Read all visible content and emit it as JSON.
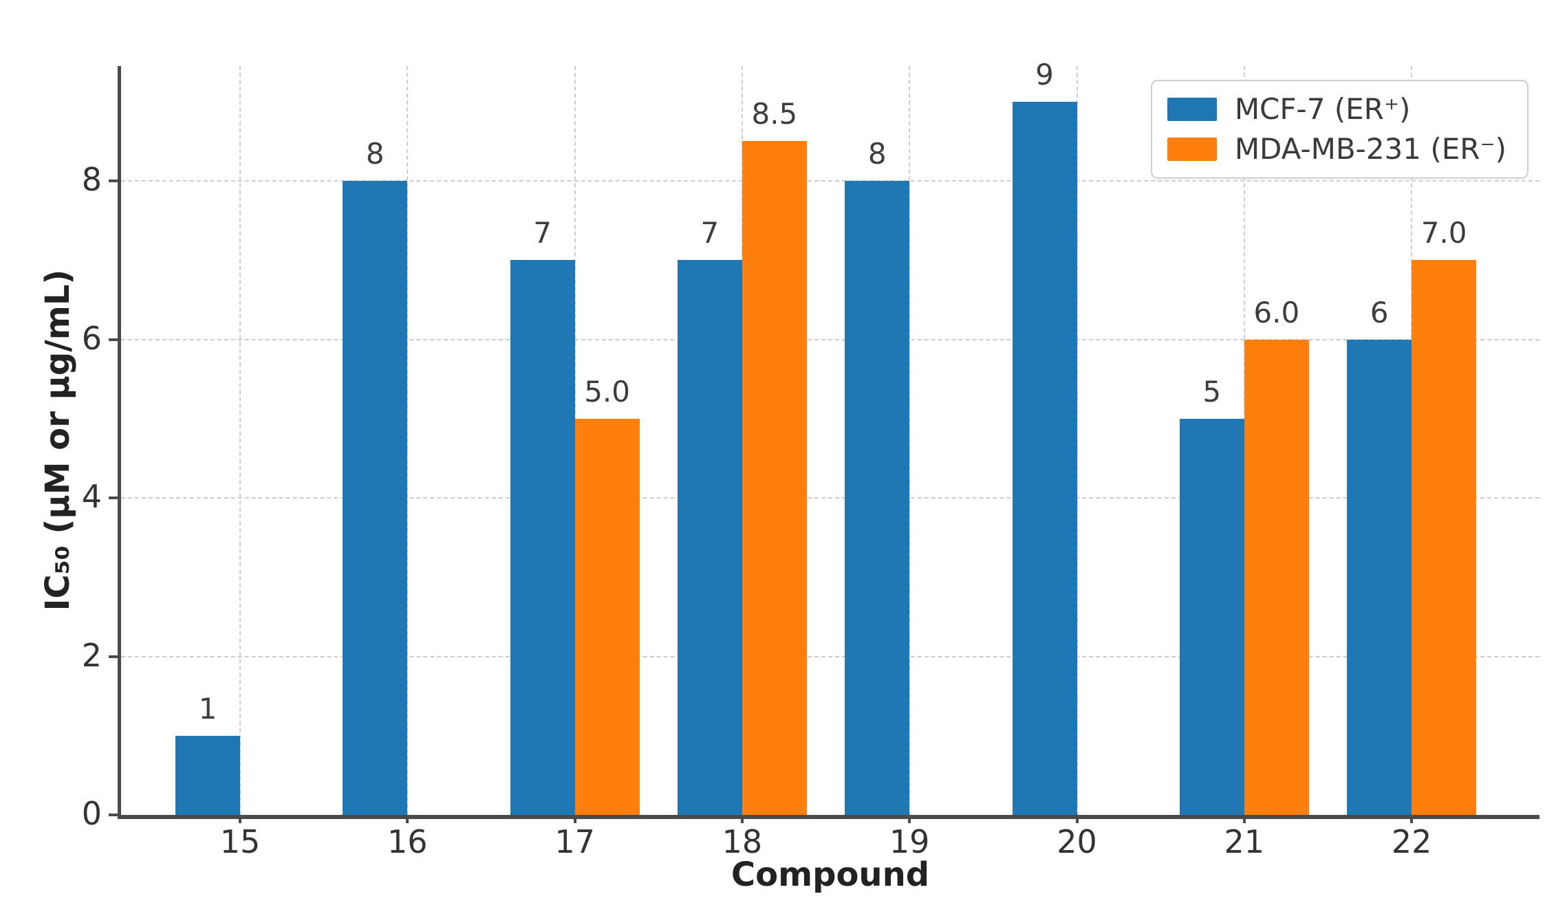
{
  "chart_data": {
    "type": "bar",
    "title": "",
    "xlabel": "Compound",
    "ylabel": "IC₅₀ (μM or μg/mL)",
    "categories": [
      "15",
      "16",
      "17",
      "18",
      "19",
      "20",
      "21",
      "22"
    ],
    "series": [
      {
        "name": "MCF-7 (ER⁺)",
        "color": "#1f77b4",
        "values": [
          1,
          8,
          7,
          7,
          8,
          9,
          5,
          6
        ],
        "labels": [
          "1",
          "8",
          "7",
          "7",
          "8",
          "9",
          "5",
          "6"
        ]
      },
      {
        "name": "MDA-MB-231 (ER⁻)",
        "color": "#ff7f0e",
        "values": [
          null,
          null,
          5.0,
          8.5,
          null,
          null,
          6.0,
          7.0
        ],
        "labels": [
          "",
          "",
          "5.0",
          "8.5",
          "",
          "",
          "6.0",
          "7.0"
        ]
      }
    ],
    "ylim": [
      0,
      9.45
    ],
    "yticks": [
      0,
      2,
      4,
      6,
      8
    ],
    "grid": "dashed, both axes",
    "legend_position": "upper right",
    "colors": {
      "axis": "#4a4a4a",
      "gridline": "#cdcdcd",
      "tick_text": "#333333",
      "bar_label_text": "#3d3d3d"
    }
  }
}
